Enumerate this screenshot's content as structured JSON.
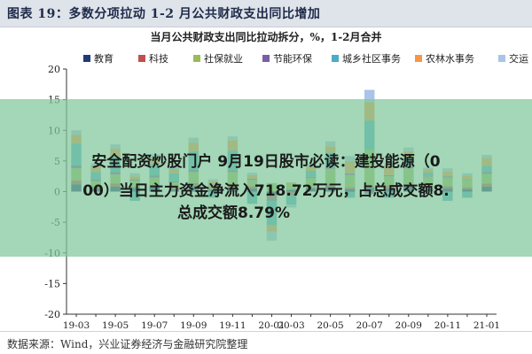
{
  "figure": {
    "title": "图表 19：多数分项拉动 1-2 月公共财政支出同比增加",
    "source": "数据来源：Wind，兴业证券经济与金融研究院整理"
  },
  "overlay": {
    "line1": "安全配资炒股门户 9月19日股市必读：建投能源（0",
    "line2": "00）当日主力资金净流入718.72万元，占总成交额8.",
    "line3": "总成交额8.79%"
  },
  "colors": {
    "教育": "#1f3b7a",
    "科技": "#c0504d",
    "社保就业": "#9bbb59",
    "节能环保": "#7a5ea6",
    "城乡社区事务": "#4bacc6",
    "农林水事务": "#f79646",
    "交运": "#a9c4e6"
  },
  "chart_data": {
    "type": "bar",
    "stacked": true,
    "title": "当月公共财政支出同比拉动拆分，%，1-2月合并",
    "xlabel": "",
    "ylabel": "",
    "ylim": [
      -20,
      20
    ],
    "yticks": [
      -20,
      -15,
      -10,
      -5,
      0,
      5,
      10,
      15,
      20
    ],
    "xticks": [
      "19-03",
      "19-05",
      "19-07",
      "19-09",
      "19-11",
      "20-01",
      "20-03",
      "20-05",
      "20-07",
      "20-09",
      "20-11",
      "21-01"
    ],
    "legend_position": "top",
    "grid": false,
    "categories": [
      "19-03",
      "19-04",
      "19-05",
      "19-06",
      "19-07",
      "19-08",
      "19-09",
      "19-10",
      "19-11",
      "19-12",
      "20-01",
      "20-03",
      "20-04",
      "20-05",
      "20-06",
      "20-07",
      "20-08",
      "20-09",
      "20-10",
      "20-11",
      "20-12",
      "21-01"
    ],
    "series": [
      {
        "name": "教育",
        "values": [
          1.2,
          0.5,
          0.8,
          0.6,
          0.7,
          0.4,
          0.9,
          0.3,
          0.6,
          0.5,
          -0.6,
          0.3,
          0.5,
          0.8,
          0.4,
          0.6,
          0.5,
          0.9,
          0.4,
          0.5,
          0.4,
          0.8
        ]
      },
      {
        "name": "科技",
        "values": [
          0.6,
          0.3,
          0.5,
          0.2,
          0.4,
          0.3,
          0.5,
          0.2,
          0.6,
          0.4,
          -0.5,
          -0.3,
          0.2,
          0.4,
          0.3,
          0.2,
          0.5,
          0.3,
          0.2,
          0.4,
          0.3,
          0.5
        ]
      },
      {
        "name": "社保就业",
        "values": [
          2.0,
          0.9,
          1.5,
          1.0,
          1.2,
          0.8,
          1.8,
          0.6,
          2.0,
          1.0,
          1.4,
          1.0,
          1.5,
          2.5,
          2.0,
          6.0,
          1.5,
          2.6,
          1.8,
          1.4,
          1.2,
          1.6
        ]
      },
      {
        "name": "节能环保",
        "values": [
          0.5,
          0.3,
          0.4,
          0.2,
          0.3,
          0.2,
          0.4,
          0.1,
          0.3,
          0.2,
          -0.4,
          -0.3,
          0.2,
          0.2,
          0.3,
          -0.4,
          0.2,
          0.3,
          0.1,
          0.2,
          0.1,
          0.3
        ]
      },
      {
        "name": "城乡社区事务",
        "values": [
          3.5,
          1.2,
          2.5,
          -1.5,
          2.0,
          1.3,
          3.0,
          -1.0,
          3.2,
          -2.0,
          -4.0,
          -1.5,
          1.0,
          2.5,
          -1.0,
          4.8,
          -1.0,
          1.5,
          0.6,
          -1.5,
          -1.0,
          1.0
        ]
      },
      {
        "name": "农林水事务",
        "values": [
          1.5,
          1.0,
          1.3,
          0.5,
          0.9,
          0.7,
          1.4,
          0.5,
          1.7,
          0.6,
          -1.0,
          0.2,
          0.7,
          1.0,
          2.0,
          3.0,
          1.5,
          1.0,
          0.5,
          0.8,
          0.6,
          1.3
        ]
      },
      {
        "name": "交运",
        "values": [
          0.7,
          0.4,
          0.7,
          0.5,
          0.6,
          0.3,
          0.8,
          0.3,
          0.6,
          0.4,
          -1.5,
          -0.5,
          0.5,
          0.8,
          0.8,
          2.0,
          0.4,
          0.6,
          0.3,
          0.5,
          0.4,
          0.5
        ]
      }
    ]
  }
}
